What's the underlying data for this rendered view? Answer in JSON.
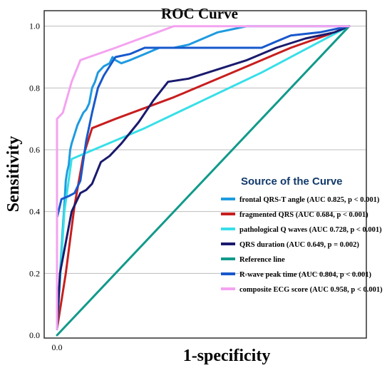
{
  "chart_data": {
    "type": "line",
    "title": "ROC Curve",
    "xlabel": "1-specificity",
    "ylabel": "Sensitivity",
    "xlim": [
      0,
      1
    ],
    "ylim": [
      0,
      1.05
    ],
    "x_ticks": [
      {
        "value": 0,
        "label": "0.0"
      }
    ],
    "y_ticks": [
      {
        "value": 0,
        "label": "0.0"
      },
      {
        "value": 0.2,
        "label": "0.2"
      },
      {
        "value": 0.4,
        "label": "0.4"
      },
      {
        "value": 0.6,
        "label": "0.6"
      },
      {
        "value": 0.8,
        "label": "0.8"
      },
      {
        "value": 1.0,
        "label": "1.0"
      }
    ],
    "grid": "horizontal",
    "legend": {
      "title": "Source of the Curve",
      "placement": "right"
    },
    "series": [
      {
        "name": "frontal QRS-T angle (AUC 0.825, p < 0.001)",
        "color": "#1e9be0",
        "width": 3,
        "points": [
          [
            0,
            0.03
          ],
          [
            0.005,
            0.1
          ],
          [
            0.012,
            0.22
          ],
          [
            0.02,
            0.35
          ],
          [
            0.025,
            0.42
          ],
          [
            0.03,
            0.5
          ],
          [
            0.035,
            0.53
          ],
          [
            0.04,
            0.55
          ],
          [
            0.045,
            0.6
          ],
          [
            0.05,
            0.62
          ],
          [
            0.06,
            0.65
          ],
          [
            0.07,
            0.68
          ],
          [
            0.08,
            0.7
          ],
          [
            0.09,
            0.72
          ],
          [
            0.1,
            0.73
          ],
          [
            0.11,
            0.75
          ],
          [
            0.12,
            0.8
          ],
          [
            0.13,
            0.82
          ],
          [
            0.14,
            0.85
          ],
          [
            0.15,
            0.86
          ],
          [
            0.16,
            0.87
          ],
          [
            0.18,
            0.88
          ],
          [
            0.19,
            0.9
          ],
          [
            0.2,
            0.89
          ],
          [
            0.22,
            0.88
          ],
          [
            0.25,
            0.89
          ],
          [
            0.3,
            0.91
          ],
          [
            0.35,
            0.93
          ],
          [
            0.4,
            0.93
          ],
          [
            0.45,
            0.94
          ],
          [
            0.5,
            0.96
          ],
          [
            0.55,
            0.98
          ],
          [
            0.6,
            0.99
          ],
          [
            0.65,
            1.0
          ],
          [
            1.0,
            1.0
          ]
        ]
      },
      {
        "name": "fragmented QRS (AUC 0.684, p < 0.001)",
        "color": "#c81e1e",
        "width": 3,
        "points": [
          [
            0,
            0.02
          ],
          [
            0.03,
            0.2
          ],
          [
            0.06,
            0.42
          ],
          [
            0.09,
            0.58
          ],
          [
            0.12,
            0.67
          ],
          [
            0.2,
            0.7
          ],
          [
            0.4,
            0.77
          ],
          [
            0.6,
            0.85
          ],
          [
            0.8,
            0.93
          ],
          [
            0.95,
            0.98
          ],
          [
            1.0,
            1.0
          ]
        ]
      },
      {
        "name": "pathological Q waves (AUC 0.728, p < 0.001)",
        "color": "#38dfe8",
        "width": 3,
        "points": [
          [
            0,
            0.02
          ],
          [
            0.025,
            0.4
          ],
          [
            0.05,
            0.57
          ],
          [
            0.1,
            0.59
          ],
          [
            0.3,
            0.67
          ],
          [
            0.5,
            0.76
          ],
          [
            0.7,
            0.85
          ],
          [
            0.9,
            0.95
          ],
          [
            1.0,
            1.0
          ]
        ]
      },
      {
        "name": "QRS duration (AUC 0.649, p = 0.002)",
        "color": "#1a1a6e",
        "width": 3,
        "points": [
          [
            0,
            0.02
          ],
          [
            0.01,
            0.2
          ],
          [
            0.03,
            0.3
          ],
          [
            0.05,
            0.4
          ],
          [
            0.08,
            0.46
          ],
          [
            0.1,
            0.47
          ],
          [
            0.12,
            0.49
          ],
          [
            0.15,
            0.56
          ],
          [
            0.18,
            0.58
          ],
          [
            0.22,
            0.62
          ],
          [
            0.28,
            0.69
          ],
          [
            0.33,
            0.76
          ],
          [
            0.38,
            0.82
          ],
          [
            0.45,
            0.83
          ],
          [
            0.55,
            0.86
          ],
          [
            0.65,
            0.89
          ],
          [
            0.75,
            0.93
          ],
          [
            0.85,
            0.96
          ],
          [
            0.95,
            0.98
          ],
          [
            1.0,
            1.0
          ]
        ]
      },
      {
        "name": "Reference line",
        "color": "#119a8a",
        "width": 3,
        "points": [
          [
            0,
            0
          ],
          [
            1,
            1
          ]
        ]
      },
      {
        "name": "R-wave peak time (AUC 0.804, p < 0.001)",
        "color": "#1758cc",
        "width": 3,
        "points": [
          [
            0,
            0.38
          ],
          [
            0.015,
            0.44
          ],
          [
            0.04,
            0.45
          ],
          [
            0.06,
            0.46
          ],
          [
            0.08,
            0.5
          ],
          [
            0.1,
            0.63
          ],
          [
            0.12,
            0.72
          ],
          [
            0.14,
            0.8
          ],
          [
            0.16,
            0.84
          ],
          [
            0.18,
            0.87
          ],
          [
            0.2,
            0.9
          ],
          [
            0.25,
            0.91
          ],
          [
            0.3,
            0.93
          ],
          [
            0.7,
            0.93
          ],
          [
            0.75,
            0.95
          ],
          [
            0.8,
            0.97
          ],
          [
            0.9,
            0.98
          ],
          [
            1.0,
            1.0
          ]
        ]
      },
      {
        "name": "composite ECG score (AUC 0.958, p < 0.001)",
        "color": "#f4a3f0",
        "width": 3,
        "points": [
          [
            0,
            0.02
          ],
          [
            0,
            0.7
          ],
          [
            0.02,
            0.72
          ],
          [
            0.05,
            0.82
          ],
          [
            0.08,
            0.89
          ],
          [
            0.2,
            0.93
          ],
          [
            0.4,
            1.0
          ],
          [
            1.0,
            1.0
          ]
        ]
      }
    ]
  }
}
